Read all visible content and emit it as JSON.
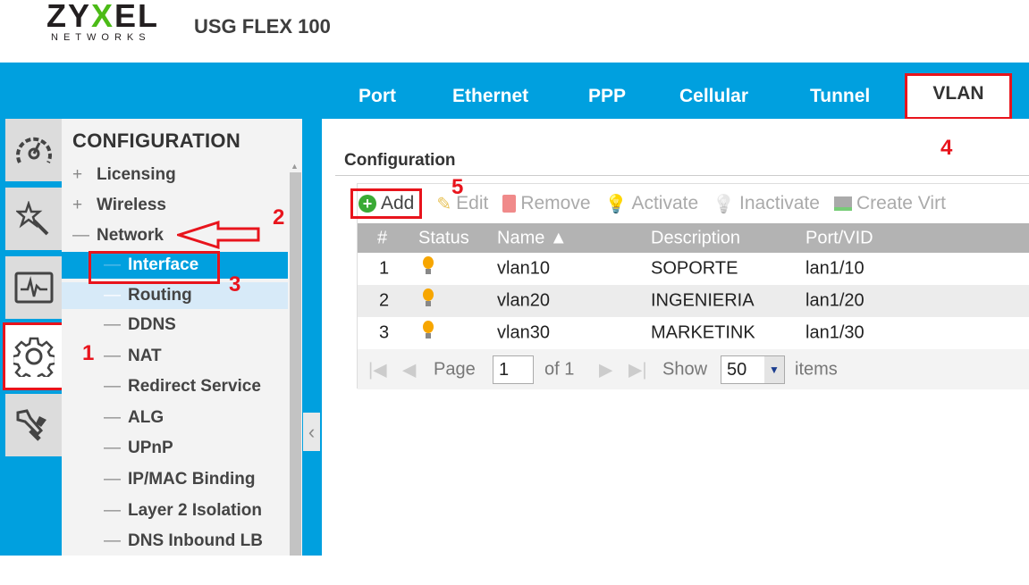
{
  "header": {
    "logo_main": "ZYXEL",
    "logo_sub": "NETWORKS",
    "model": "USG FLEX 100"
  },
  "tabs": [
    {
      "label": "Port"
    },
    {
      "label": "Ethernet"
    },
    {
      "label": "PPP"
    },
    {
      "label": "Cellular"
    },
    {
      "label": "Tunnel"
    },
    {
      "label": "VLAN",
      "active": true
    }
  ],
  "icon_column": [
    {
      "icon": "dashboard-gauge-icon"
    },
    {
      "icon": "quick-setup-wand-icon"
    },
    {
      "icon": "monitor-pulse-icon"
    },
    {
      "icon": "configuration-gear-icon",
      "selected": true
    },
    {
      "icon": "maintenance-tools-icon"
    }
  ],
  "nav": {
    "title": "CONFIGURATION",
    "items": [
      {
        "prefix": "+",
        "label": "Licensing",
        "level": 1
      },
      {
        "prefix": "+",
        "label": "Wireless",
        "level": 1
      },
      {
        "prefix": "—",
        "label": "Network",
        "level": 1
      },
      {
        "prefix": "—",
        "label": "Interface",
        "level": 2,
        "state": "active"
      },
      {
        "prefix": "—",
        "label": "Routing",
        "level": 2,
        "state": "hover"
      },
      {
        "prefix": "—",
        "label": "DDNS",
        "level": 2
      },
      {
        "prefix": "—",
        "label": "NAT",
        "level": 2
      },
      {
        "prefix": "—",
        "label": "Redirect Service",
        "level": 2
      },
      {
        "prefix": "—",
        "label": "ALG",
        "level": 2
      },
      {
        "prefix": "—",
        "label": "UPnP",
        "level": 2
      },
      {
        "prefix": "—",
        "label": "IP/MAC Binding",
        "level": 2
      },
      {
        "prefix": "—",
        "label": "Layer 2 Isolation",
        "level": 2
      },
      {
        "prefix": "—",
        "label": "DNS Inbound LB",
        "level": 2
      }
    ]
  },
  "main": {
    "section_title": "Configuration",
    "toolbar": {
      "add": "Add",
      "edit": "Edit",
      "remove": "Remove",
      "activate": "Activate",
      "inactivate": "Inactivate",
      "create_virtual": "Create Virt"
    },
    "columns": [
      "#",
      "Status",
      "Name ▲",
      "Description",
      "Port/VID"
    ],
    "rows": [
      {
        "num": "1",
        "status": "active",
        "name": "vlan10",
        "description": "SOPORTE",
        "port_vid": "lan1/10"
      },
      {
        "num": "2",
        "status": "active",
        "name": "vlan20",
        "description": "INGENIERIA",
        "port_vid": "lan1/20"
      },
      {
        "num": "3",
        "status": "active",
        "name": "vlan30",
        "description": "MARKETINK",
        "port_vid": "lan1/30"
      }
    ],
    "pager": {
      "page_label": "Page",
      "page_value": "1",
      "of_label": "of 1",
      "show_label": "Show",
      "show_value": "50",
      "items_label": "items"
    }
  },
  "annotations": [
    "1",
    "2",
    "3",
    "4",
    "5"
  ],
  "colors": {
    "brand_blue": "#00a0df",
    "annotation_red": "#e8141c",
    "logo_green": "#4cbb17",
    "bulb_on": "#f7a600"
  }
}
